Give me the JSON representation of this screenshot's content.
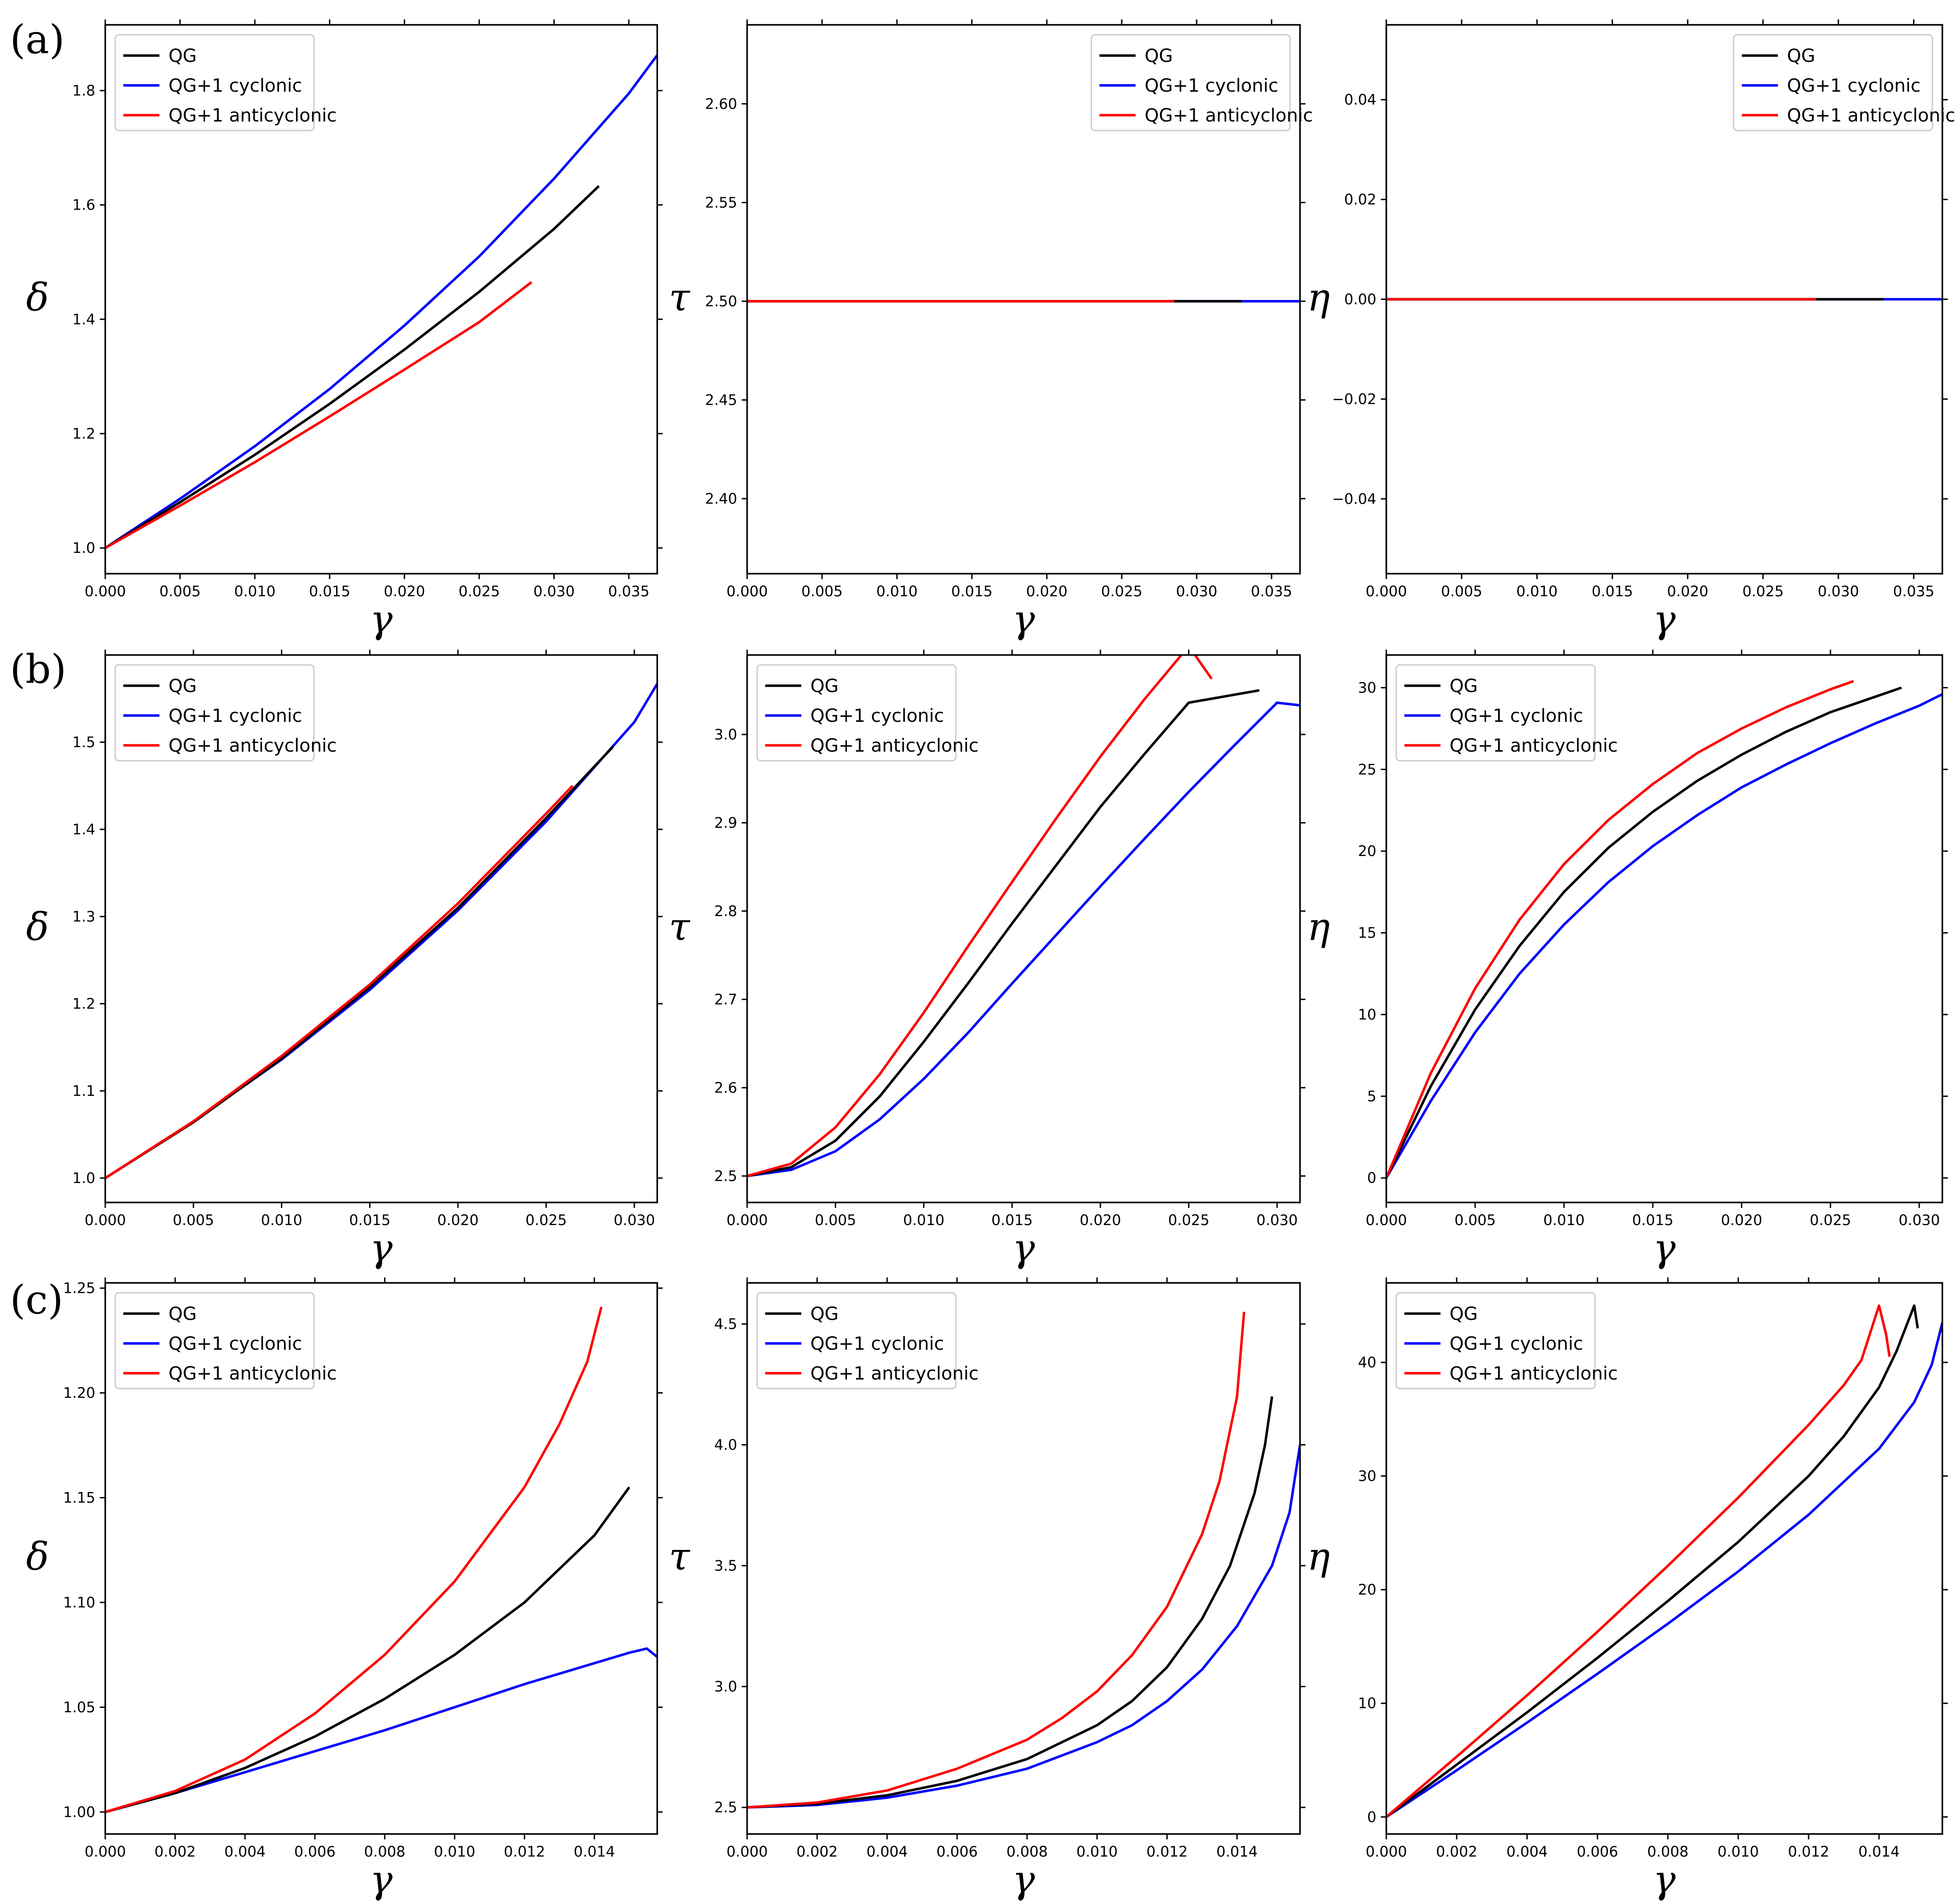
{
  "legend": [
    "QG",
    "QG+1 cyclonic",
    "QG+1 anticyclonic"
  ],
  "colors": {
    "QG": "#000000",
    "QG+1 cyclonic": "#0000ff",
    "QG+1 anticyclonic": "#ff0000"
  },
  "row_labels": [
    "(a)",
    "(b)",
    "(c)"
  ],
  "chart_data": [
    {
      "type": "line",
      "row": 0,
      "col": 0,
      "title": "",
      "xlabel": "γ",
      "ylabel": "δ",
      "xlim": [
        0,
        0.0369
      ],
      "ylim": [
        0.955,
        1.915
      ],
      "xticks": [
        0,
        0.005,
        0.01,
        0.015,
        0.02,
        0.025,
        0.03,
        0.035
      ],
      "xtick_labels": [
        "0.000",
        "0.005",
        "0.010",
        "0.015",
        "0.020",
        "0.025",
        "0.030",
        "0.035"
      ],
      "yticks": [
        1.0,
        1.2,
        1.4,
        1.6,
        1.8
      ],
      "ytick_labels": [
        "1.0",
        "1.2",
        "1.4",
        "1.6",
        "1.8"
      ],
      "legend_position": "top-left",
      "series": [
        {
          "name": "QG",
          "x": [
            0,
            0.005,
            0.01,
            0.015,
            0.02,
            0.025,
            0.03,
            0.033
          ],
          "y": [
            1.0,
            1.08,
            1.163,
            1.252,
            1.347,
            1.448,
            1.558,
            1.633
          ]
        },
        {
          "name": "QG+1 cyclonic",
          "x": [
            0,
            0.005,
            0.01,
            0.015,
            0.02,
            0.025,
            0.03,
            0.035,
            0.0369
          ],
          "y": [
            1.0,
            1.086,
            1.178,
            1.278,
            1.389,
            1.51,
            1.646,
            1.795,
            1.862
          ]
        },
        {
          "name": "QG+1 anticyclonic",
          "x": [
            0,
            0.005,
            0.01,
            0.015,
            0.02,
            0.025,
            0.0285
          ],
          "y": [
            1.0,
            1.074,
            1.15,
            1.23,
            1.312,
            1.395,
            1.465
          ]
        }
      ]
    },
    {
      "type": "line",
      "row": 0,
      "col": 1,
      "title": "",
      "xlabel": "γ",
      "ylabel": "τ",
      "xlim": [
        0,
        0.0369
      ],
      "ylim": [
        2.362,
        2.64
      ],
      "xticks": [
        0,
        0.005,
        0.01,
        0.015,
        0.02,
        0.025,
        0.03,
        0.035
      ],
      "xtick_labels": [
        "0.000",
        "0.005",
        "0.010",
        "0.015",
        "0.020",
        "0.025",
        "0.030",
        "0.035"
      ],
      "yticks": [
        2.4,
        2.45,
        2.5,
        2.55,
        2.6
      ],
      "ytick_labels": [
        "2.40",
        "2.45",
        "2.50",
        "2.55",
        "2.60"
      ],
      "legend_position": "top-right",
      "series": [
        {
          "name": "QG",
          "x": [
            0,
            0.033
          ],
          "y": [
            2.5,
            2.5
          ]
        },
        {
          "name": "QG+1 cyclonic",
          "x": [
            0,
            0.0369
          ],
          "y": [
            2.5,
            2.5
          ]
        },
        {
          "name": "QG+1 anticyclonic",
          "x": [
            0,
            0.0285
          ],
          "y": [
            2.5,
            2.5
          ]
        }
      ]
    },
    {
      "type": "line",
      "row": 0,
      "col": 2,
      "title": "",
      "xlabel": "γ",
      "ylabel": "η",
      "xlim": [
        0,
        0.0369
      ],
      "ylim": [
        -0.055,
        0.055
      ],
      "xticks": [
        0,
        0.005,
        0.01,
        0.015,
        0.02,
        0.025,
        0.03,
        0.035
      ],
      "xtick_labels": [
        "0.000",
        "0.005",
        "0.010",
        "0.015",
        "0.020",
        "0.025",
        "0.030",
        "0.035"
      ],
      "yticks": [
        -0.04,
        -0.02,
        0,
        0.02,
        0.04
      ],
      "ytick_labels": [
        "−0.04",
        "−0.02",
        "0.00",
        "0.02",
        "0.04"
      ],
      "legend_position": "top-right",
      "series": [
        {
          "name": "QG",
          "x": [
            0,
            0.033
          ],
          "y": [
            0,
            0
          ]
        },
        {
          "name": "QG+1 cyclonic",
          "x": [
            0,
            0.0369
          ],
          "y": [
            0,
            0
          ]
        },
        {
          "name": "QG+1 anticyclonic",
          "x": [
            0,
            0.0285
          ],
          "y": [
            0,
            0
          ]
        }
      ]
    },
    {
      "type": "line",
      "row": 1,
      "col": 0,
      "title": "",
      "xlabel": "γ",
      "ylabel": "δ",
      "xlim": [
        0,
        0.0313
      ],
      "ylim": [
        0.972,
        1.6
      ],
      "xticks": [
        0,
        0.005,
        0.01,
        0.015,
        0.02,
        0.025,
        0.03
      ],
      "xtick_labels": [
        "0.000",
        "0.005",
        "0.010",
        "0.015",
        "0.020",
        "0.025",
        "0.030"
      ],
      "yticks": [
        1.0,
        1.1,
        1.2,
        1.3,
        1.4,
        1.5
      ],
      "ytick_labels": [
        "1.0",
        "1.1",
        "1.2",
        "1.3",
        "1.4",
        "1.5"
      ],
      "legend_position": "top-left",
      "series": [
        {
          "name": "QG",
          "x": [
            0,
            0.005,
            0.01,
            0.015,
            0.02,
            0.025,
            0.0288
          ],
          "y": [
            1.0,
            1.064,
            1.137,
            1.219,
            1.31,
            1.413,
            1.495
          ]
        },
        {
          "name": "QG+1 cyclonic",
          "x": [
            0,
            0.005,
            0.01,
            0.015,
            0.02,
            0.025,
            0.03,
            0.0313
          ],
          "y": [
            1.0,
            1.065,
            1.136,
            1.216,
            1.307,
            1.409,
            1.523,
            1.567
          ]
        },
        {
          "name": "QG+1 anticyclonic",
          "x": [
            0,
            0.005,
            0.01,
            0.015,
            0.02,
            0.025,
            0.0265
          ],
          "y": [
            1.0,
            1.065,
            1.14,
            1.222,
            1.315,
            1.418,
            1.45
          ]
        }
      ]
    },
    {
      "type": "line",
      "row": 1,
      "col": 1,
      "title": "",
      "xlabel": "γ",
      "ylabel": "τ",
      "xlim": [
        0,
        0.0313
      ],
      "ylim": [
        2.47,
        3.09
      ],
      "xticks": [
        0,
        0.005,
        0.01,
        0.015,
        0.02,
        0.025,
        0.03
      ],
      "xtick_labels": [
        "0.000",
        "0.005",
        "0.010",
        "0.015",
        "0.020",
        "0.025",
        "0.030"
      ],
      "yticks": [
        2.5,
        2.6,
        2.7,
        2.8,
        2.9,
        3.0
      ],
      "ytick_labels": [
        "2.5",
        "2.6",
        "2.7",
        "2.8",
        "2.9",
        "3.0"
      ],
      "legend_position": "top-left",
      "series": [
        {
          "name": "QG",
          "x": [
            0,
            0.0025,
            0.005,
            0.0075,
            0.01,
            0.0125,
            0.015,
            0.0175,
            0.02,
            0.0225,
            0.025,
            0.029
          ],
          "y": [
            2.5,
            2.51,
            2.54,
            2.59,
            2.652,
            2.718,
            2.786,
            2.852,
            2.918,
            2.978,
            3.036,
            3.05
          ]
        },
        {
          "name": "QG+1 cyclonic",
          "x": [
            0,
            0.0025,
            0.005,
            0.0075,
            0.01,
            0.0125,
            0.015,
            0.0175,
            0.02,
            0.0225,
            0.025,
            0.0275,
            0.03,
            0.0313
          ],
          "y": [
            2.5,
            2.507,
            2.528,
            2.564,
            2.61,
            2.662,
            2.718,
            2.773,
            2.828,
            2.882,
            2.935,
            2.986,
            3.036,
            3.033
          ]
        },
        {
          "name": "QG+1 anticyclonic",
          "x": [
            0,
            0.0025,
            0.005,
            0.0075,
            0.01,
            0.0125,
            0.015,
            0.0175,
            0.02,
            0.0225,
            0.025,
            0.0263
          ],
          "y": [
            2.5,
            2.514,
            2.555,
            2.615,
            2.685,
            2.76,
            2.833,
            2.905,
            2.975,
            3.04,
            3.1,
            3.063
          ]
        }
      ]
    },
    {
      "type": "line",
      "row": 1,
      "col": 2,
      "title": "",
      "xlabel": "γ",
      "ylabel": "η",
      "xlim": [
        0,
        0.0313
      ],
      "ylim": [
        -1.5,
        32
      ],
      "xticks": [
        0,
        0.005,
        0.01,
        0.015,
        0.02,
        0.025,
        0.03
      ],
      "xtick_labels": [
        "0.000",
        "0.005",
        "0.010",
        "0.015",
        "0.020",
        "0.025",
        "0.030"
      ],
      "yticks": [
        0,
        5,
        10,
        15,
        20,
        25,
        30
      ],
      "ytick_labels": [
        "0",
        "5",
        "10",
        "15",
        "20",
        "25",
        "30"
      ],
      "legend_position": "top-left",
      "series": [
        {
          "name": "QG",
          "x": [
            0,
            0.0025,
            0.005,
            0.0075,
            0.01,
            0.0125,
            0.015,
            0.0175,
            0.02,
            0.0225,
            0.025,
            0.029
          ],
          "y": [
            0,
            5.6,
            10.3,
            14.2,
            17.5,
            20.2,
            22.4,
            24.3,
            25.9,
            27.3,
            28.5,
            30.0
          ]
        },
        {
          "name": "QG+1 cyclonic",
          "x": [
            0,
            0.0025,
            0.005,
            0.0075,
            0.01,
            0.0125,
            0.015,
            0.0175,
            0.02,
            0.0225,
            0.025,
            0.0275,
            0.03,
            0.0313
          ],
          "y": [
            0,
            4.7,
            8.9,
            12.5,
            15.5,
            18.1,
            20.3,
            22.2,
            23.9,
            25.3,
            26.6,
            27.8,
            28.9,
            29.6
          ]
        },
        {
          "name": "QG+1 anticyclonic",
          "x": [
            0,
            0.0025,
            0.005,
            0.0075,
            0.01,
            0.0125,
            0.015,
            0.0175,
            0.02,
            0.0225,
            0.025,
            0.0263
          ],
          "y": [
            0,
            6.4,
            11.6,
            15.8,
            19.2,
            21.9,
            24.1,
            26.0,
            27.5,
            28.8,
            29.9,
            30.4
          ]
        }
      ]
    },
    {
      "type": "line",
      "row": 2,
      "col": 0,
      "title": "",
      "xlabel": "γ",
      "ylabel": "δ",
      "xlim": [
        0,
        0.0158
      ],
      "ylim": [
        0.9895,
        1.2525
      ],
      "xticks": [
        0,
        0.002,
        0.004,
        0.006,
        0.008,
        0.01,
        0.012,
        0.014
      ],
      "xtick_labels": [
        "0.000",
        "0.002",
        "0.004",
        "0.006",
        "0.008",
        "0.010",
        "0.012",
        "0.014"
      ],
      "yticks": [
        1.0,
        1.05,
        1.1,
        1.15,
        1.2,
        1.25
      ],
      "ytick_labels": [
        "1.00",
        "1.05",
        "1.10",
        "1.15",
        "1.20",
        "1.25"
      ],
      "legend_position": "top-left",
      "series": [
        {
          "name": "QG",
          "x": [
            0,
            0.002,
            0.004,
            0.006,
            0.008,
            0.01,
            0.012,
            0.014,
            0.015
          ],
          "y": [
            1.0,
            1.009,
            1.021,
            1.036,
            1.054,
            1.075,
            1.1,
            1.132,
            1.155
          ]
        },
        {
          "name": "QG+1 cyclonic",
          "x": [
            0,
            0.002,
            0.004,
            0.006,
            0.008,
            0.01,
            0.012,
            0.014,
            0.015,
            0.0155,
            0.0158
          ],
          "y": [
            1.0,
            1.009,
            1.019,
            1.029,
            1.039,
            1.05,
            1.061,
            1.071,
            1.076,
            1.078,
            1.074
          ]
        },
        {
          "name": "QG+1 anticyclonic",
          "x": [
            0,
            0.002,
            0.004,
            0.006,
            0.008,
            0.01,
            0.012,
            0.013,
            0.0138,
            0.0142
          ],
          "y": [
            1.0,
            1.01,
            1.025,
            1.047,
            1.075,
            1.11,
            1.155,
            1.185,
            1.215,
            1.241
          ]
        }
      ]
    },
    {
      "type": "line",
      "row": 2,
      "col": 1,
      "title": "",
      "xlabel": "γ",
      "ylabel": "τ",
      "xlim": [
        0,
        0.0158
      ],
      "ylim": [
        2.39,
        4.67
      ],
      "xticks": [
        0,
        0.002,
        0.004,
        0.006,
        0.008,
        0.01,
        0.012,
        0.014
      ],
      "xtick_labels": [
        "0.000",
        "0.002",
        "0.004",
        "0.006",
        "0.008",
        "0.010",
        "0.012",
        "0.014"
      ],
      "yticks": [
        2.5,
        3.0,
        3.5,
        4.0,
        4.5
      ],
      "ytick_labels": [
        "2.5",
        "3.0",
        "3.5",
        "4.0",
        "4.5"
      ],
      "legend_position": "top-left",
      "series": [
        {
          "name": "QG",
          "x": [
            0,
            0.002,
            0.004,
            0.006,
            0.008,
            0.01,
            0.011,
            0.012,
            0.013,
            0.0138,
            0.0145,
            0.0148,
            0.015
          ],
          "y": [
            2.5,
            2.515,
            2.55,
            2.61,
            2.7,
            2.84,
            2.94,
            3.08,
            3.28,
            3.5,
            3.8,
            4.0,
            4.2
          ]
        },
        {
          "name": "QG+1 cyclonic",
          "x": [
            0,
            0.002,
            0.004,
            0.006,
            0.008,
            0.01,
            0.011,
            0.012,
            0.013,
            0.014,
            0.015,
            0.0155,
            0.0158
          ],
          "y": [
            2.5,
            2.51,
            2.54,
            2.59,
            2.66,
            2.77,
            2.84,
            2.94,
            3.07,
            3.25,
            3.5,
            3.72,
            4.0
          ]
        },
        {
          "name": "QG+1 anticyclonic",
          "x": [
            0,
            0.002,
            0.004,
            0.006,
            0.008,
            0.009,
            0.01,
            0.011,
            0.012,
            0.013,
            0.0135,
            0.014,
            0.0142
          ],
          "y": [
            2.5,
            2.52,
            2.57,
            2.66,
            2.78,
            2.87,
            2.98,
            3.13,
            3.33,
            3.63,
            3.85,
            4.2,
            4.55
          ]
        }
      ]
    },
    {
      "type": "line",
      "row": 2,
      "col": 2,
      "title": "",
      "xlabel": "γ",
      "ylabel": "η",
      "xlim": [
        0,
        0.0158
      ],
      "ylim": [
        -1.5,
        47
      ],
      "xticks": [
        0,
        0.002,
        0.004,
        0.006,
        0.008,
        0.01,
        0.012,
        0.014
      ],
      "xtick_labels": [
        "0.000",
        "0.002",
        "0.004",
        "0.006",
        "0.008",
        "0.010",
        "0.012",
        "0.014"
      ],
      "yticks": [
        0,
        10,
        20,
        30,
        40
      ],
      "ytick_labels": [
        "0",
        "10",
        "20",
        "30",
        "40"
      ],
      "legend_position": "top-left",
      "series": [
        {
          "name": "QG",
          "x": [
            0,
            0.002,
            0.004,
            0.006,
            0.008,
            0.01,
            0.012,
            0.013,
            0.014,
            0.0145,
            0.015,
            0.0151
          ],
          "y": [
            0,
            4.6,
            9.2,
            14.0,
            19.0,
            24.2,
            30.0,
            33.5,
            37.8,
            41.0,
            45.0,
            43.0
          ]
        },
        {
          "name": "QG+1 cyclonic",
          "x": [
            0,
            0.002,
            0.004,
            0.006,
            0.008,
            0.01,
            0.012,
            0.014,
            0.015,
            0.0155,
            0.0158
          ],
          "y": [
            0,
            4.1,
            8.3,
            12.6,
            17.0,
            21.6,
            26.6,
            32.4,
            36.5,
            39.8,
            43.5
          ]
        },
        {
          "name": "QG+1 anticyclonic",
          "x": [
            0,
            0.002,
            0.004,
            0.006,
            0.008,
            0.01,
            0.012,
            0.013,
            0.0135,
            0.014,
            0.0142,
            0.0143
          ],
          "y": [
            0,
            5.3,
            10.7,
            16.3,
            22.1,
            28.1,
            34.5,
            38.0,
            40.2,
            45.0,
            42.5,
            40.5
          ]
        }
      ]
    }
  ]
}
